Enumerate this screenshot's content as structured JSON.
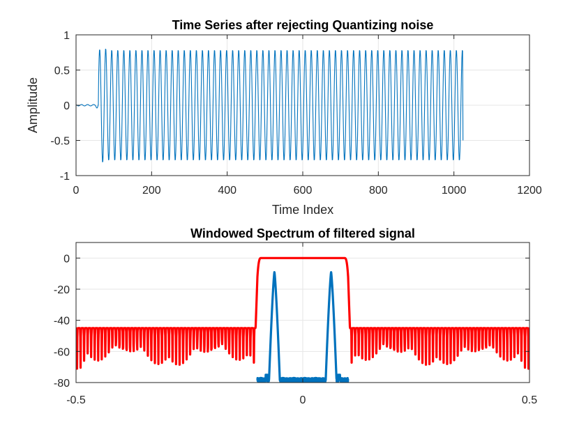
{
  "chart_data": [
    {
      "type": "line",
      "title": "Time Series after rejecting Quantizing noise",
      "xlabel": "Time Index",
      "ylabel": "Amplitude",
      "xlim": [
        0,
        1200
      ],
      "ylim": [
        -1,
        1
      ],
      "xticks": [
        "0",
        "200",
        "400",
        "600",
        "800",
        "1000",
        "1200"
      ],
      "yticks": [
        "-1",
        "-0.5",
        "0",
        "0.5",
        "1"
      ],
      "grid": true,
      "series": [
        {
          "color": "#0072BD",
          "signal": {
            "n_start": 1,
            "n_end": 1024,
            "period_samples": 16,
            "onset_index": 60,
            "steady_amplitude": 0.79,
            "peak_amplitude": 0.82,
            "pre_onset_amplitude": 0.01,
            "end_value": -0.5
          }
        }
      ]
    },
    {
      "type": "line",
      "title": "Windowed Spectrum of filtered signal",
      "xlabel": "",
      "ylabel": "",
      "xlim": [
        -0.5,
        0.5
      ],
      "ylim": [
        -80,
        10
      ],
      "xticks": [
        "-0.5",
        "0",
        "0.5"
      ],
      "yticks": [
        "-80",
        "-60",
        "-40",
        "-20",
        "0"
      ],
      "grid": true,
      "series": [
        {
          "color": "#FF0000",
          "shape": {
            "passband_edges": [
              -0.1,
              0.1
            ],
            "passband_level": 0,
            "stopband_peak_level": -45,
            "stopband_null_floor": -80,
            "lobe_spacing": 0.0078
          }
        },
        {
          "color": "#0072BD",
          "shape": {
            "peak_frequencies": [
              -0.0625,
              0.0625
            ],
            "peak_level": -9,
            "noise_floor": [
              -80,
              -77
            ],
            "noise_range": [
              -0.1,
              0.1
            ],
            "spur_frequencies": [
              -0.08,
              0.08
            ],
            "spur_level": -75
          }
        }
      ]
    }
  ]
}
